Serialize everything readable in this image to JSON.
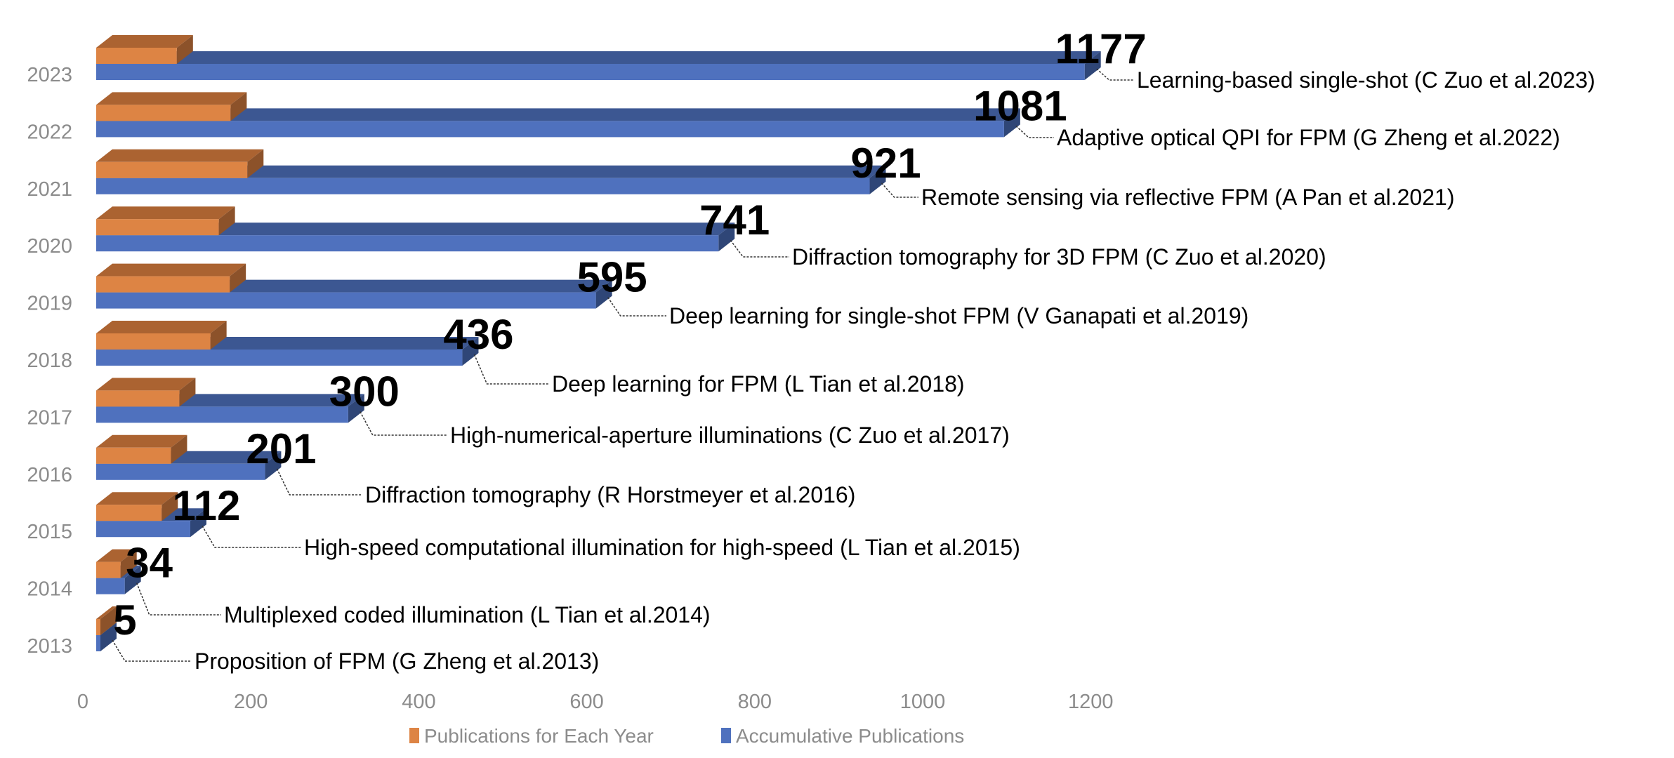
{
  "chart_data": {
    "type": "bar",
    "orientation": "horizontal",
    "style": "3d",
    "categories": [
      "2023",
      "2022",
      "2021",
      "2020",
      "2019",
      "2018",
      "2017",
      "2016",
      "2015",
      "2014",
      "2013"
    ],
    "series": [
      {
        "name": "Publications for Each Year",
        "color": "#DD8444",
        "values": [
          96,
          160,
          180,
          146,
          159,
          136,
          99,
          89,
          78,
          29,
          5
        ]
      },
      {
        "name": "Accumulative Publications",
        "color": "#4F71BE",
        "values": [
          1177,
          1081,
          921,
          741,
          595,
          436,
          300,
          201,
          112,
          34,
          5
        ]
      }
    ],
    "data_labels": [
      "1177",
      "1081",
      "921",
      "741",
      "595",
      "436",
      "300",
      "201",
      "112",
      "34",
      "5"
    ],
    "annotations": [
      "Learning-based single-shot (C Zuo et al.2023)",
      "Adaptive optical QPI for FPM (G Zheng et al.2022)",
      "Remote sensing via reflective FPM (A Pan et al.2021)",
      "Diffraction tomography for 3D FPM (C Zuo et al.2020)",
      "Deep learning for single-shot FPM (V Ganapati et al.2019)",
      "Deep learning for FPM (L Tian et al.2018)",
      "High-numerical-aperture illuminations (C Zuo et al.2017)",
      "Diffraction tomography (R Horstmeyer et al.2016)",
      "High-speed computational illumination for high-speed (L Tian et al.2015)",
      "Multiplexed coded illumination (L Tian et al.2014)",
      "Proposition of FPM (G Zheng et al.2013)"
    ],
    "xticks": [
      "0",
      "200",
      "400",
      "600",
      "800",
      "1000",
      "1200"
    ],
    "xlim": [
      0,
      1200
    ],
    "grid": false,
    "legend_position": "bottom",
    "title": "",
    "xlabel": "",
    "ylabel": ""
  }
}
